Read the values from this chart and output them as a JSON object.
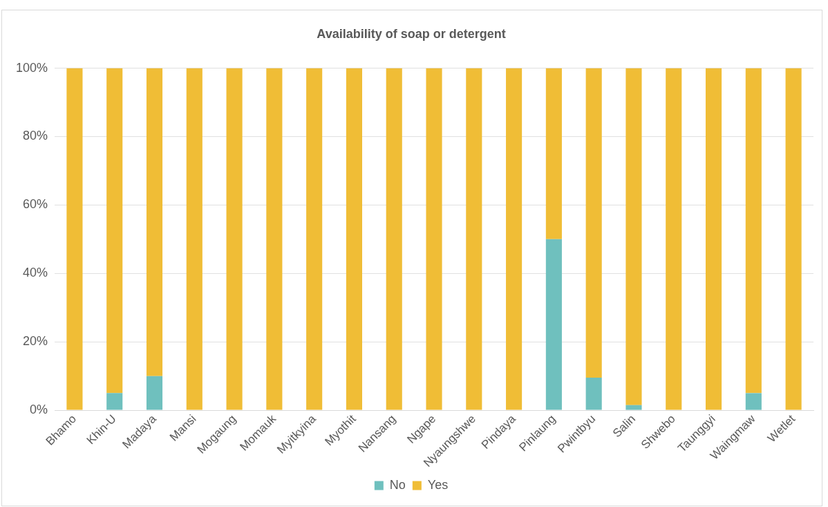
{
  "chart_data": {
    "type": "bar",
    "title": "Availability of soap or detergent",
    "stacked": true,
    "categories": [
      "Bhamo",
      "Khin-U",
      "Madaya",
      "Mansi",
      "Mogaung",
      "Momauk",
      "Myitkyina",
      "Myothit",
      "Nansang",
      "Ngape",
      "Nyaungshwe",
      "Pindaya",
      "Pinlaung",
      "Pwintbyu",
      "Salin",
      "Shwebo",
      "Taunggyi",
      "Waingmaw",
      "Wetlet"
    ],
    "series": [
      {
        "name": "No",
        "color": "#6fc0be",
        "values": [
          0,
          5,
          10,
          0,
          0,
          0,
          0,
          0,
          0,
          0,
          0,
          0,
          50,
          9.5,
          1.5,
          0,
          0,
          5,
          0
        ]
      },
      {
        "name": "Yes",
        "color": "#f0bd36",
        "values": [
          100,
          95,
          90,
          100,
          100,
          100,
          100,
          100,
          100,
          100,
          100,
          100,
          50,
          90.5,
          98.5,
          100,
          100,
          95,
          100
        ]
      }
    ],
    "ylim": [
      0,
      100
    ],
    "yticks": [
      {
        "value": 0,
        "label": "0%"
      },
      {
        "value": 20,
        "label": "20%"
      },
      {
        "value": 40,
        "label": "40%"
      },
      {
        "value": 60,
        "label": "60%"
      },
      {
        "value": 80,
        "label": "80%"
      },
      {
        "value": 100,
        "label": "100%"
      }
    ],
    "grid": "y",
    "legend": "bottom"
  }
}
